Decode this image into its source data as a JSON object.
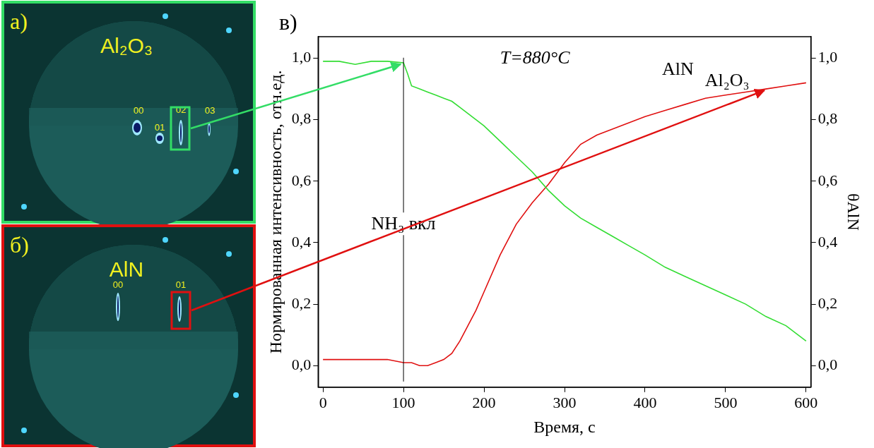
{
  "panels": [
    {
      "letter": "а)",
      "material": "Al₂O₃",
      "reflexes": [
        "00",
        "01",
        "02",
        "03"
      ],
      "marked": "02"
    },
    {
      "letter": "б)",
      "material": "AlN",
      "reflexes": [
        "00",
        "01"
      ],
      "marked": "01"
    }
  ],
  "chart_data": {
    "type": "line",
    "panel_letter": "в)",
    "x_label": "Время, с",
    "y_label": "Нормированная интенсивность, отн.ед.",
    "y2_label": "θAlN",
    "x": [
      0,
      20,
      40,
      60,
      80,
      100,
      105,
      110,
      120,
      130,
      140,
      150,
      160,
      170,
      180,
      190,
      200,
      220,
      240,
      260,
      280,
      300,
      320,
      340,
      360,
      380,
      400,
      425,
      450,
      475,
      500,
      525,
      550,
      575,
      600
    ],
    "series": [
      {
        "name": "Al₂O₃",
        "color": "#33dd33",
        "values": [
          0.99,
          0.99,
          0.98,
          0.99,
          0.99,
          0.985,
          0.95,
          0.91,
          0.9,
          0.89,
          0.88,
          0.87,
          0.86,
          0.84,
          0.82,
          0.8,
          0.78,
          0.73,
          0.68,
          0.63,
          0.57,
          0.52,
          0.48,
          0.45,
          0.42,
          0.39,
          0.36,
          0.32,
          0.29,
          0.26,
          0.23,
          0.2,
          0.16,
          0.13,
          0.08
        ]
      },
      {
        "name": "AlN",
        "color": "#e01010",
        "axis": "y2",
        "values": [
          0.02,
          0.02,
          0.02,
          0.02,
          0.02,
          0.01,
          0.01,
          0.01,
          0.0,
          0.0,
          0.01,
          0.02,
          0.04,
          0.08,
          0.13,
          0.18,
          0.24,
          0.36,
          0.46,
          0.53,
          0.59,
          0.66,
          0.72,
          0.75,
          0.77,
          0.79,
          0.81,
          0.83,
          0.85,
          0.87,
          0.88,
          0.89,
          0.9,
          0.91,
          0.92
        ]
      }
    ],
    "annotations": [
      {
        "text": "T=880°C"
      },
      {
        "text": "NH₃ вкл",
        "x": 100
      }
    ],
    "xlim": [
      -6,
      606
    ],
    "xticks": [
      0,
      100,
      200,
      300,
      400,
      500,
      600
    ],
    "ylim": [
      -0.07,
      1.07
    ],
    "yticks": [
      {
        "value": 0,
        "label": "0,0"
      },
      {
        "value": 0.2,
        "label": "0,2"
      },
      {
        "value": 0.4,
        "label": "0,4"
      },
      {
        "value": 0.6,
        "label": "0,6"
      },
      {
        "value": 0.8,
        "label": "0,8"
      },
      {
        "value": 1,
        "label": "1,0"
      }
    ],
    "y2lim": [
      -0.07,
      1.07
    ],
    "y2ticks": [
      {
        "value": 0,
        "label": "0,0"
      },
      {
        "value": 0.2,
        "label": "0,2"
      },
      {
        "value": 0.4,
        "label": "0,4"
      },
      {
        "value": 0.6,
        "label": "0,6"
      },
      {
        "value": 0.8,
        "label": "0,8"
      },
      {
        "value": 1,
        "label": "1,0"
      }
    ],
    "grid": false,
    "legend": false
  }
}
